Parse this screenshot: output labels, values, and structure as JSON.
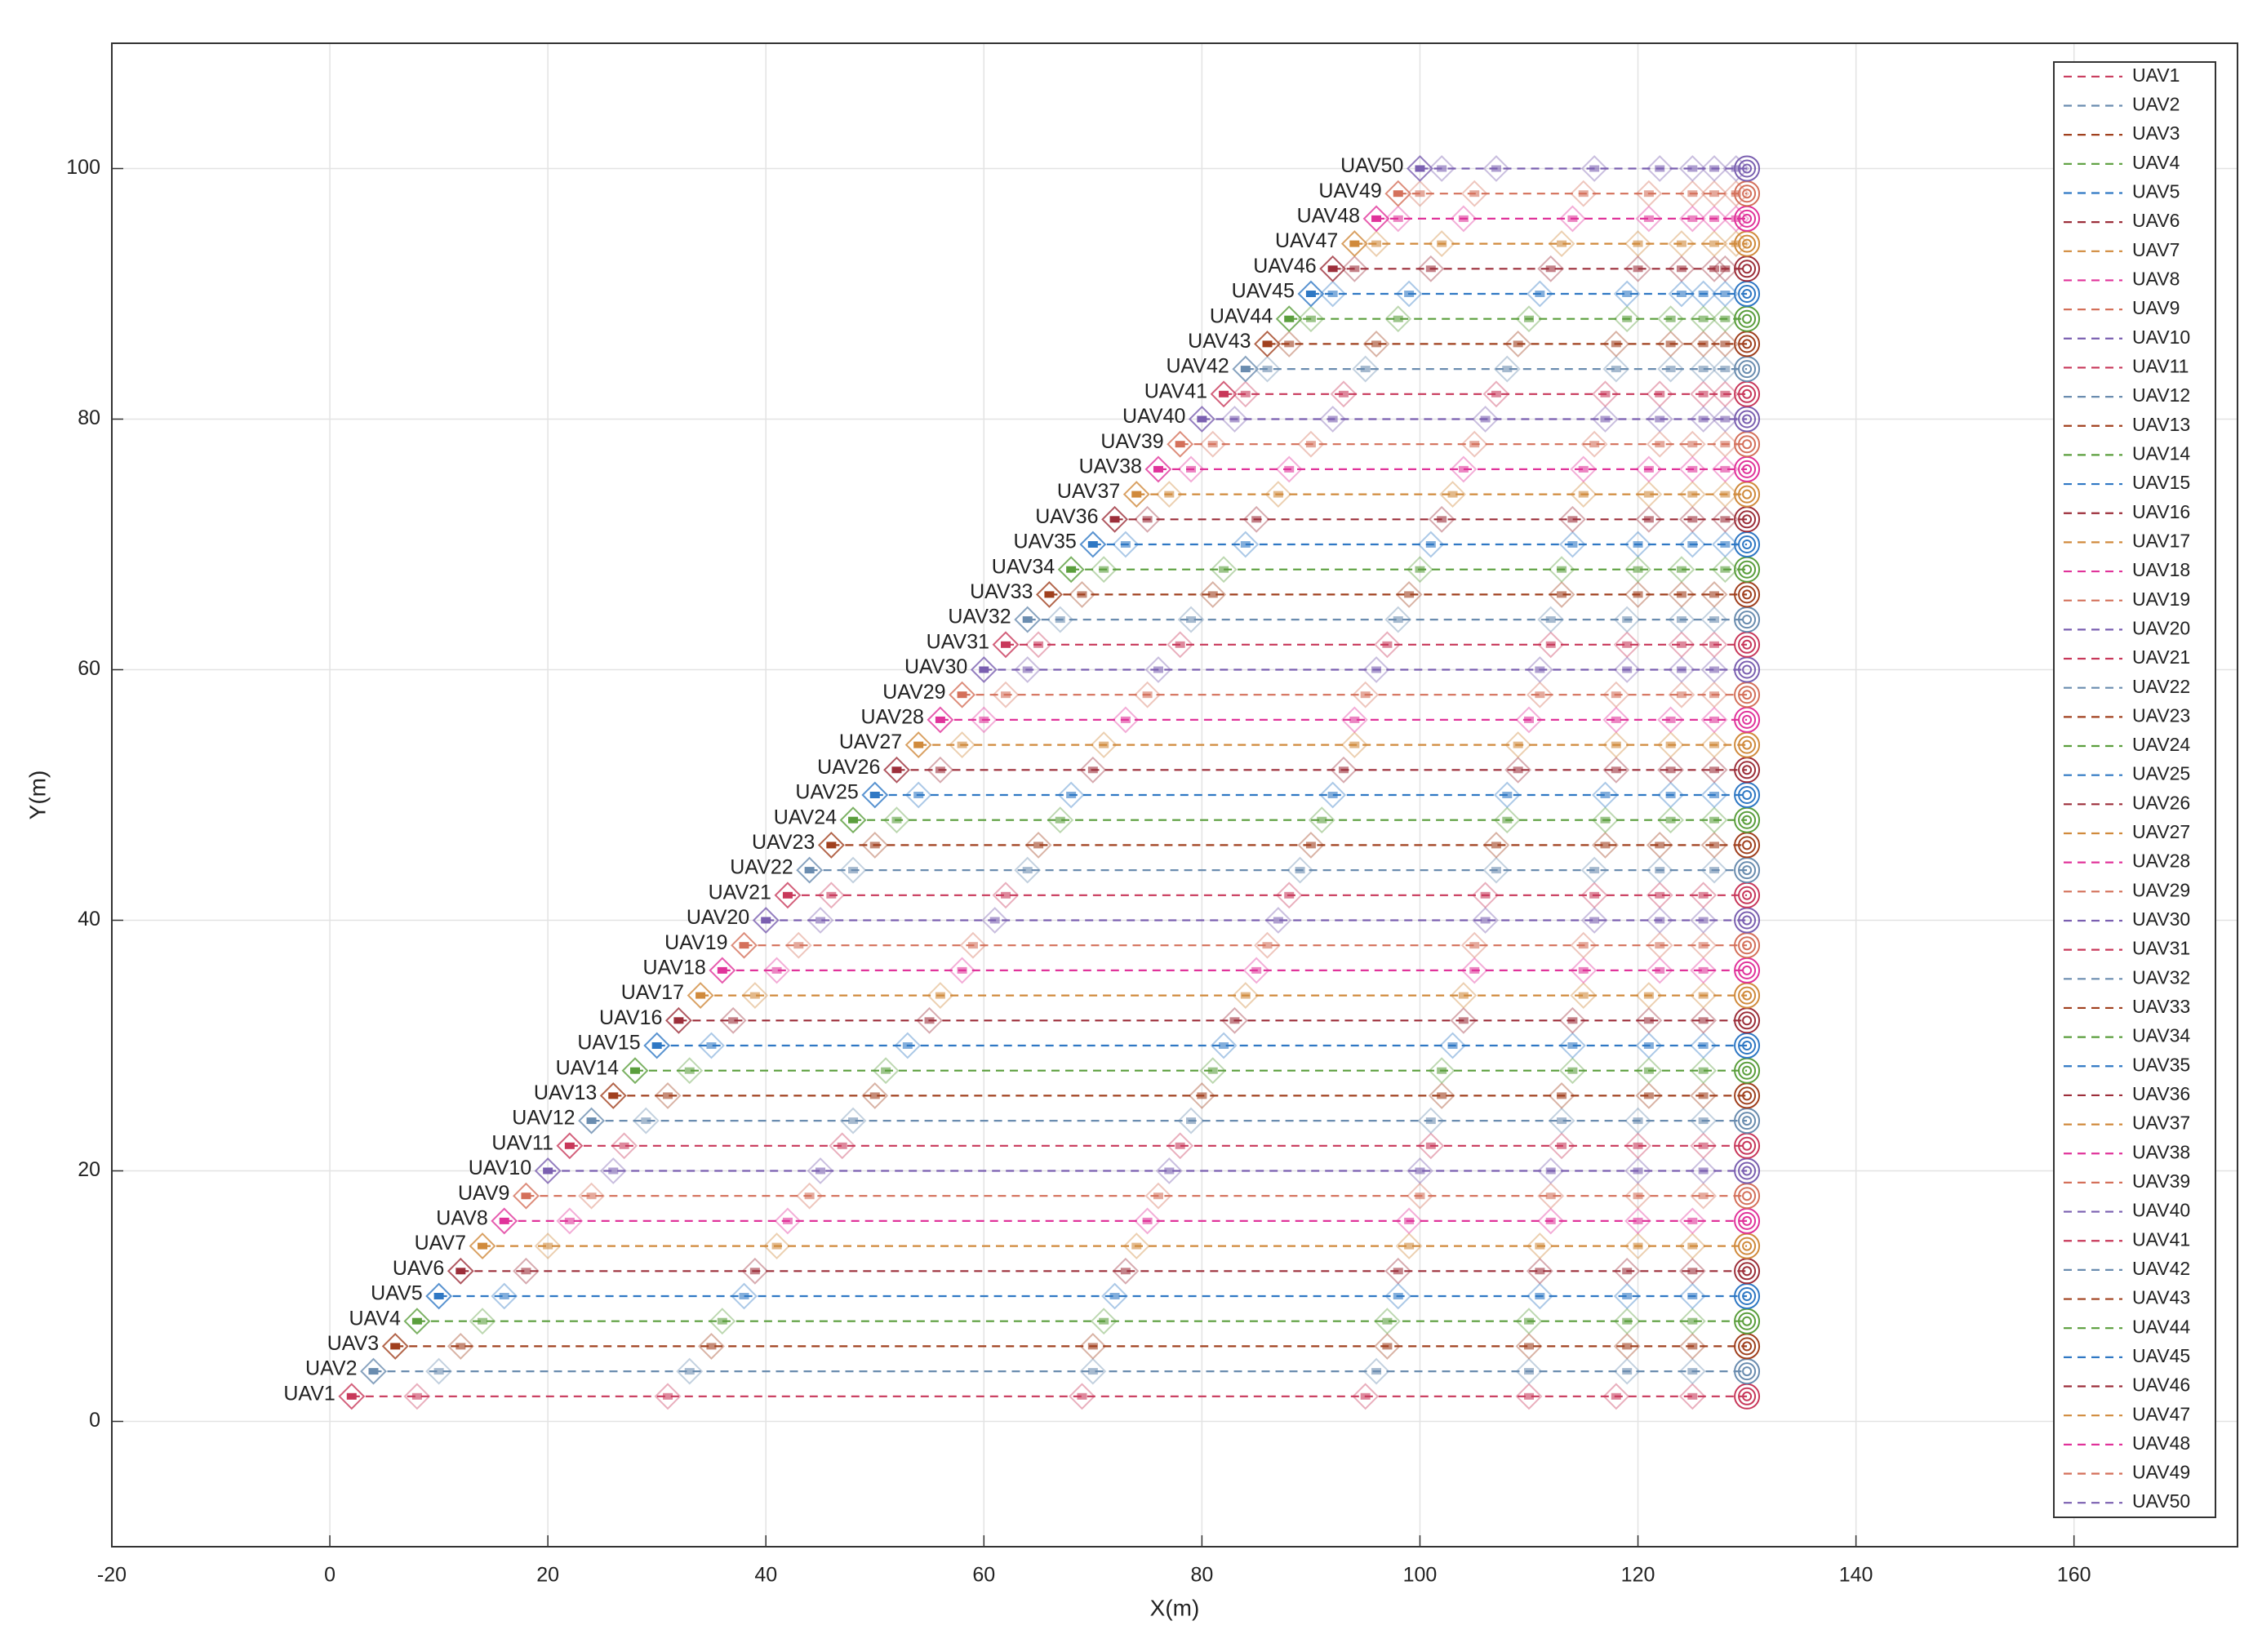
{
  "chart_data": {
    "type": "line",
    "xlabel": "X(m)",
    "ylabel": "Y(m)",
    "xlim": [
      -20,
      175
    ],
    "ylim": [
      -10,
      110
    ],
    "xticks": [
      -20,
      0,
      20,
      40,
      60,
      80,
      100,
      120,
      140,
      160
    ],
    "yticks": [
      0,
      20,
      40,
      60,
      80,
      100
    ],
    "grid": true,
    "legend": "northeast",
    "series": [
      {
        "name": "UAV1",
        "color": "#c8385a",
        "x": [
          2,
          8,
          31,
          69,
          95,
          110,
          118,
          125,
          130
        ],
        "values": [
          2,
          2,
          2,
          2,
          2,
          2,
          2,
          2,
          2
        ]
      },
      {
        "name": "UAV2",
        "color": "#6a8caf",
        "x": [
          4,
          10,
          33,
          70,
          96,
          110,
          119,
          125,
          130
        ],
        "values": [
          4,
          4,
          4,
          4,
          4,
          4,
          4,
          4,
          4
        ]
      },
      {
        "name": "UAV3",
        "color": "#a0401e",
        "x": [
          6,
          12,
          35,
          70,
          97,
          110,
          119,
          125,
          130
        ],
        "values": [
          6,
          6,
          6,
          6,
          6,
          6,
          6,
          6,
          6
        ]
      },
      {
        "name": "UAV4",
        "color": "#5a9e3c",
        "x": [
          8,
          14,
          36,
          71,
          97,
          110,
          119,
          125,
          130
        ],
        "values": [
          8,
          8,
          8,
          8,
          8,
          8,
          8,
          8,
          8
        ]
      },
      {
        "name": "UAV5",
        "color": "#2f78c4",
        "x": [
          10,
          16,
          38,
          72,
          98,
          111,
          119,
          125,
          130
        ],
        "values": [
          10,
          10,
          10,
          10,
          10,
          10,
          10,
          10,
          10
        ]
      },
      {
        "name": "UAV6",
        "color": "#9c2e3a",
        "x": [
          12,
          18,
          39,
          73,
          98,
          111,
          119,
          125,
          130
        ],
        "values": [
          12,
          12,
          12,
          12,
          12,
          12,
          12,
          12,
          12
        ]
      },
      {
        "name": "UAV7",
        "color": "#d08a3c",
        "x": [
          14,
          20,
          41,
          74,
          99,
          111,
          120,
          125,
          130
        ],
        "values": [
          14,
          14,
          14,
          14,
          14,
          14,
          14,
          14,
          14
        ]
      },
      {
        "name": "UAV8",
        "color": "#e0339a",
        "x": [
          16,
          22,
          42,
          75,
          99,
          112,
          120,
          125,
          130
        ],
        "values": [
          16,
          16,
          16,
          16,
          16,
          16,
          16,
          16,
          16
        ]
      },
      {
        "name": "UAV9",
        "color": "#d4705a",
        "x": [
          18,
          24,
          44,
          76,
          100,
          112,
          120,
          126,
          130
        ],
        "values": [
          18,
          18,
          18,
          18,
          18,
          18,
          18,
          18,
          18
        ]
      },
      {
        "name": "UAV10",
        "color": "#7a5fb0",
        "x": [
          20,
          26,
          45,
          77,
          100,
          112,
          120,
          126,
          130
        ],
        "values": [
          20,
          20,
          20,
          20,
          20,
          20,
          20,
          20,
          20
        ]
      },
      {
        "name": "UAV11",
        "color": "#c8385a",
        "x": [
          22,
          27,
          47,
          78,
          101,
          113,
          120,
          126,
          130
        ],
        "values": [
          22,
          22,
          22,
          22,
          22,
          22,
          22,
          22,
          22
        ]
      },
      {
        "name": "UAV12",
        "color": "#6a8caf",
        "x": [
          24,
          29,
          48,
          79,
          101,
          113,
          120,
          126,
          130
        ],
        "values": [
          24,
          24,
          24,
          24,
          24,
          24,
          24,
          24,
          24
        ]
      },
      {
        "name": "UAV13",
        "color": "#a0401e",
        "x": [
          26,
          31,
          50,
          80,
          102,
          113,
          121,
          126,
          130
        ],
        "values": [
          26,
          26,
          26,
          26,
          26,
          26,
          26,
          26,
          26
        ]
      },
      {
        "name": "UAV14",
        "color": "#5a9e3c",
        "x": [
          28,
          33,
          51,
          81,
          102,
          114,
          121,
          126,
          130
        ],
        "values": [
          28,
          28,
          28,
          28,
          28,
          28,
          28,
          28,
          28
        ]
      },
      {
        "name": "UAV15",
        "color": "#2f78c4",
        "x": [
          30,
          35,
          53,
          82,
          103,
          114,
          121,
          126,
          130
        ],
        "values": [
          30,
          30,
          30,
          30,
          30,
          30,
          30,
          30,
          30
        ]
      },
      {
        "name": "UAV16",
        "color": "#9c2e3a",
        "x": [
          32,
          37,
          55,
          83,
          104,
          114,
          121,
          126,
          130
        ],
        "values": [
          32,
          32,
          32,
          32,
          32,
          32,
          32,
          32,
          32
        ]
      },
      {
        "name": "UAV17",
        "color": "#d08a3c",
        "x": [
          34,
          39,
          56,
          84,
          104,
          115,
          121,
          126,
          130
        ],
        "values": [
          34,
          34,
          34,
          34,
          34,
          34,
          34,
          34,
          34
        ]
      },
      {
        "name": "UAV18",
        "color": "#e0339a",
        "x": [
          36,
          41,
          58,
          85,
          105,
          115,
          122,
          126,
          130
        ],
        "values": [
          36,
          36,
          36,
          36,
          36,
          36,
          36,
          36,
          36
        ]
      },
      {
        "name": "UAV19",
        "color": "#d4705a",
        "x": [
          38,
          43,
          59,
          86,
          105,
          115,
          122,
          126,
          130
        ],
        "values": [
          38,
          38,
          38,
          38,
          38,
          38,
          38,
          38,
          38
        ]
      },
      {
        "name": "UAV20",
        "color": "#7a5fb0",
        "x": [
          40,
          45,
          61,
          87,
          106,
          116,
          122,
          126,
          130
        ],
        "values": [
          40,
          40,
          40,
          40,
          40,
          40,
          40,
          40,
          40
        ]
      },
      {
        "name": "UAV21",
        "color": "#c8385a",
        "x": [
          42,
          46,
          62,
          88,
          106,
          116,
          122,
          126,
          130
        ],
        "values": [
          42,
          42,
          42,
          42,
          42,
          42,
          42,
          42,
          42
        ]
      },
      {
        "name": "UAV22",
        "color": "#6a8caf",
        "x": [
          44,
          48,
          64,
          89,
          107,
          116,
          122,
          127,
          130
        ],
        "values": [
          44,
          44,
          44,
          44,
          44,
          44,
          44,
          44,
          44
        ]
      },
      {
        "name": "UAV23",
        "color": "#a0401e",
        "x": [
          46,
          50,
          65,
          90,
          107,
          117,
          122,
          127,
          130
        ],
        "values": [
          46,
          46,
          46,
          46,
          46,
          46,
          46,
          46,
          46
        ]
      },
      {
        "name": "UAV24",
        "color": "#5a9e3c",
        "x": [
          48,
          52,
          67,
          91,
          108,
          117,
          123,
          127,
          130
        ],
        "values": [
          48,
          48,
          48,
          48,
          48,
          48,
          48,
          48,
          48
        ]
      },
      {
        "name": "UAV25",
        "color": "#2f78c4",
        "x": [
          50,
          54,
          68,
          92,
          108,
          117,
          123,
          127,
          130
        ],
        "values": [
          50,
          50,
          50,
          50,
          50,
          50,
          50,
          50,
          50
        ]
      },
      {
        "name": "UAV26",
        "color": "#9c2e3a",
        "x": [
          52,
          56,
          70,
          93,
          109,
          118,
          123,
          127,
          130
        ],
        "values": [
          52,
          52,
          52,
          52,
          52,
          52,
          52,
          52,
          52
        ]
      },
      {
        "name": "UAV27",
        "color": "#d08a3c",
        "x": [
          54,
          58,
          71,
          94,
          109,
          118,
          123,
          127,
          130
        ],
        "values": [
          54,
          54,
          54,
          54,
          54,
          54,
          54,
          54,
          54
        ]
      },
      {
        "name": "UAV28",
        "color": "#e0339a",
        "x": [
          56,
          60,
          73,
          94,
          110,
          118,
          123,
          127,
          130
        ],
        "values": [
          56,
          56,
          56,
          56,
          56,
          56,
          56,
          56,
          56
        ]
      },
      {
        "name": "UAV29",
        "color": "#d4705a",
        "x": [
          58,
          62,
          75,
          95,
          111,
          118,
          124,
          127,
          130
        ],
        "values": [
          58,
          58,
          58,
          58,
          58,
          58,
          58,
          58,
          58
        ]
      },
      {
        "name": "UAV30",
        "color": "#7a5fb0",
        "x": [
          60,
          64,
          76,
          96,
          111,
          119,
          124,
          127,
          130
        ],
        "values": [
          60,
          60,
          60,
          60,
          60,
          60,
          60,
          60,
          60
        ]
      },
      {
        "name": "UAV31",
        "color": "#c8385a",
        "x": [
          62,
          65,
          78,
          97,
          112,
          119,
          124,
          127,
          130
        ],
        "values": [
          62,
          62,
          62,
          62,
          62,
          62,
          62,
          62,
          62
        ]
      },
      {
        "name": "UAV32",
        "color": "#6a8caf",
        "x": [
          64,
          67,
          79,
          98,
          112,
          119,
          124,
          127,
          130
        ],
        "values": [
          64,
          64,
          64,
          64,
          64,
          64,
          64,
          64,
          64
        ]
      },
      {
        "name": "UAV33",
        "color": "#a0401e",
        "x": [
          66,
          69,
          81,
          99,
          113,
          120,
          124,
          127,
          130
        ],
        "values": [
          66,
          66,
          66,
          66,
          66,
          66,
          66,
          66,
          66
        ]
      },
      {
        "name": "UAV34",
        "color": "#5a9e3c",
        "x": [
          68,
          71,
          82,
          100,
          113,
          120,
          124,
          128,
          130
        ],
        "values": [
          68,
          68,
          68,
          68,
          68,
          68,
          68,
          68,
          68
        ]
      },
      {
        "name": "UAV35",
        "color": "#2f78c4",
        "x": [
          70,
          73,
          84,
          101,
          114,
          120,
          125,
          128,
          130
        ],
        "values": [
          70,
          70,
          70,
          70,
          70,
          70,
          70,
          70,
          70
        ]
      },
      {
        "name": "UAV36",
        "color": "#9c2e3a",
        "x": [
          72,
          75,
          85,
          102,
          114,
          121,
          125,
          128,
          130
        ],
        "values": [
          72,
          72,
          72,
          72,
          72,
          72,
          72,
          72,
          72
        ]
      },
      {
        "name": "UAV37",
        "color": "#d08a3c",
        "x": [
          74,
          77,
          87,
          103,
          115,
          121,
          125,
          128,
          130
        ],
        "values": [
          74,
          74,
          74,
          74,
          74,
          74,
          74,
          74,
          74
        ]
      },
      {
        "name": "UAV38",
        "color": "#e0339a",
        "x": [
          76,
          79,
          88,
          104,
          115,
          121,
          125,
          128,
          130
        ],
        "values": [
          76,
          76,
          76,
          76,
          76,
          76,
          76,
          76,
          76
        ]
      },
      {
        "name": "UAV39",
        "color": "#d4705a",
        "x": [
          78,
          81,
          90,
          105,
          116,
          122,
          125,
          128,
          130
        ],
        "values": [
          78,
          78,
          78,
          78,
          78,
          78,
          78,
          78,
          78
        ]
      },
      {
        "name": "UAV40",
        "color": "#7a5fb0",
        "x": [
          80,
          83,
          92,
          106,
          117,
          122,
          126,
          128,
          130
        ],
        "values": [
          80,
          80,
          80,
          80,
          80,
          80,
          80,
          80,
          80
        ]
      },
      {
        "name": "UAV41",
        "color": "#c8385a",
        "x": [
          82,
          84,
          93,
          107,
          117,
          122,
          126,
          128,
          130
        ],
        "values": [
          82,
          82,
          82,
          82,
          82,
          82,
          82,
          82,
          82
        ]
      },
      {
        "name": "UAV42",
        "color": "#6a8caf",
        "x": [
          84,
          86,
          95,
          108,
          118,
          123,
          126,
          128,
          130
        ],
        "values": [
          84,
          84,
          84,
          84,
          84,
          84,
          84,
          84,
          84
        ]
      },
      {
        "name": "UAV43",
        "color": "#a0401e",
        "x": [
          86,
          88,
          96,
          109,
          118,
          123,
          126,
          128,
          130
        ],
        "values": [
          86,
          86,
          86,
          86,
          86,
          86,
          86,
          86,
          86
        ]
      },
      {
        "name": "UAV44",
        "color": "#5a9e3c",
        "x": [
          88,
          90,
          98,
          110,
          119,
          123,
          126,
          128,
          130
        ],
        "values": [
          88,
          88,
          88,
          88,
          88,
          88,
          88,
          88,
          88
        ]
      },
      {
        "name": "UAV45",
        "color": "#2f78c4",
        "x": [
          90,
          92,
          99,
          111,
          119,
          124,
          126,
          128,
          130
        ],
        "values": [
          90,
          90,
          90,
          90,
          90,
          90,
          90,
          90,
          90
        ]
      },
      {
        "name": "UAV46",
        "color": "#9c2e3a",
        "x": [
          92,
          94,
          101,
          112,
          120,
          124,
          127,
          128,
          130
        ],
        "values": [
          92,
          92,
          92,
          92,
          92,
          92,
          92,
          92,
          92
        ]
      },
      {
        "name": "UAV47",
        "color": "#d08a3c",
        "x": [
          94,
          96,
          102,
          113,
          120,
          124,
          127,
          129,
          130
        ],
        "values": [
          94,
          94,
          94,
          94,
          94,
          94,
          94,
          94,
          94
        ]
      },
      {
        "name": "UAV48",
        "color": "#e0339a",
        "x": [
          96,
          98,
          104,
          114,
          121,
          125,
          127,
          129,
          130
        ],
        "values": [
          96,
          96,
          96,
          96,
          96,
          96,
          96,
          96,
          96
        ]
      },
      {
        "name": "UAV49",
        "color": "#d4705a",
        "x": [
          98,
          100,
          105,
          115,
          121,
          125,
          127,
          129,
          130
        ],
        "values": [
          98,
          98,
          98,
          98,
          98,
          98,
          98,
          98,
          98
        ]
      },
      {
        "name": "UAV50",
        "color": "#7a5fb0",
        "x": [
          100,
          102,
          107,
          116,
          122,
          125,
          127,
          129,
          130
        ],
        "values": [
          100,
          100,
          100,
          100,
          100,
          100,
          100,
          100,
          100
        ]
      }
    ]
  }
}
